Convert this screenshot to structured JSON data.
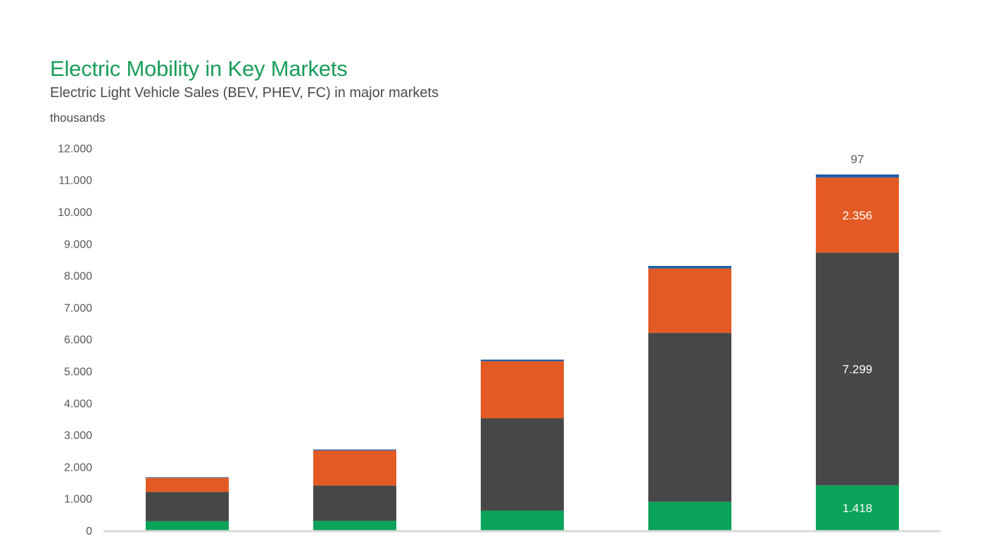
{
  "title": "Electric Mobility in Key Markets",
  "subtitle": "Electric Light Vehicle Sales (BEV, PHEV, FC) in major markets",
  "unit_label": "thousands",
  "colors": {
    "title": "#1a9c5a",
    "series_bottom": "#0aa35a",
    "series_middle": "#474747",
    "series_upper": "#e35a24",
    "series_top": "#1f5fa6",
    "gridline": "#d9d9d9",
    "axis_text": "#595959"
  },
  "chart_data": {
    "type": "bar",
    "stacked": true,
    "title": "Electric Mobility in Key Markets",
    "subtitle": "Electric Light Vehicle Sales (BEV, PHEV, FC) in major markets",
    "ylabel": "thousands",
    "ylim": [
      0,
      12000
    ],
    "ytick_step": 1000,
    "ytick_labels": [
      "0",
      "1.000",
      "2.000",
      "3.000",
      "4.000",
      "5.000",
      "6.000",
      "7.000",
      "8.000",
      "9.000",
      "10.000",
      "11.000",
      "12.000"
    ],
    "grid": false,
    "legend": "none",
    "categories": [
      "",
      "",
      "",
      "",
      ""
    ],
    "series": [
      {
        "values": [
          290,
          300,
          620,
          900,
          1418
        ],
        "labels": [
          "",
          "",
          "",
          "",
          "1.418"
        ]
      },
      {
        "values": [
          920,
          1110,
          2900,
          5300,
          7299
        ],
        "labels": [
          "",
          "",
          "",
          "",
          "7.299"
        ]
      },
      {
        "values": [
          440,
          1100,
          1790,
          2020,
          2356
        ],
        "labels": [
          "",
          "",
          "",
          "",
          "2.356"
        ]
      },
      {
        "values": [
          20,
          30,
          50,
          80,
          97
        ],
        "labels": [
          "",
          "",
          "",
          "",
          "97"
        ]
      }
    ]
  }
}
